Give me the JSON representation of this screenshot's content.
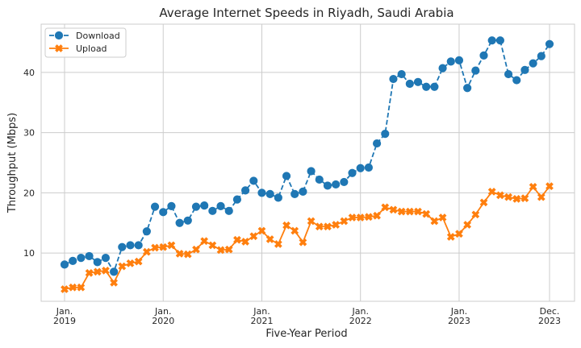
{
  "chart_data": {
    "type": "line",
    "title": "Average Internet Speeds in Riyadh, Saudi Arabia",
    "xlabel": "Five-Year Period",
    "ylabel": "Throughput (Mbps)",
    "ylim": [
      2,
      48
    ],
    "y_ticks": [
      10,
      20,
      30,
      40
    ],
    "x_ticks": [
      {
        "index": 0,
        "line1": "Jan.",
        "line2": "2019"
      },
      {
        "index": 12,
        "line1": "Jan.",
        "line2": "2020"
      },
      {
        "index": 24,
        "line1": "Jan.",
        "line2": "2021"
      },
      {
        "index": 36,
        "line1": "Jan.",
        "line2": "2022"
      },
      {
        "index": 48,
        "line1": "Jan.",
        "line2": "2023"
      },
      {
        "index": 59,
        "line1": "Dec.",
        "line2": "2023"
      }
    ],
    "grid": true,
    "legend_position": "top-left",
    "x_start": "2019-01",
    "x_end": "2023-12",
    "series": [
      {
        "name": "Download",
        "color": "#1f77b4",
        "marker": "circle",
        "line_style": "dashed",
        "values": [
          8.1,
          8.7,
          9.2,
          9.5,
          8.5,
          9.2,
          6.9,
          11.0,
          11.3,
          11.3,
          13.6,
          17.7,
          16.8,
          17.8,
          15.0,
          15.4,
          17.7,
          17.9,
          17.0,
          17.8,
          17.0,
          18.9,
          20.4,
          22.0,
          20.0,
          19.8,
          19.2,
          22.8,
          19.8,
          20.2,
          23.6,
          22.2,
          21.2,
          21.4,
          21.8,
          23.3,
          24.1,
          24.2,
          28.2,
          29.8,
          38.9,
          39.7,
          38.1,
          38.4,
          37.6,
          37.6,
          40.7,
          41.8,
          42.0,
          37.4,
          40.3,
          42.8,
          45.3,
          45.3,
          39.7,
          38.7,
          40.4,
          41.5,
          42.7,
          44.7
        ]
      },
      {
        "name": "Upload",
        "color": "#ff7f0e",
        "marker": "x",
        "line_style": "solid",
        "values": [
          4.0,
          4.3,
          4.3,
          6.7,
          6.9,
          7.1,
          5.1,
          7.8,
          8.3,
          8.6,
          10.2,
          10.9,
          11.0,
          11.3,
          9.9,
          9.8,
          10.6,
          12.0,
          11.3,
          10.5,
          10.6,
          12.2,
          11.9,
          12.8,
          13.7,
          12.3,
          11.5,
          14.6,
          13.7,
          11.8,
          15.3,
          14.4,
          14.4,
          14.7,
          15.3,
          15.9,
          15.9,
          16.0,
          16.2,
          17.6,
          17.2,
          16.9,
          16.9,
          16.9,
          16.5,
          15.3,
          15.9,
          12.7,
          13.2,
          14.7,
          16.4,
          18.4,
          20.2,
          19.6,
          19.3,
          19.0,
          19.1,
          21.0,
          19.3,
          21.1
        ]
      }
    ]
  }
}
